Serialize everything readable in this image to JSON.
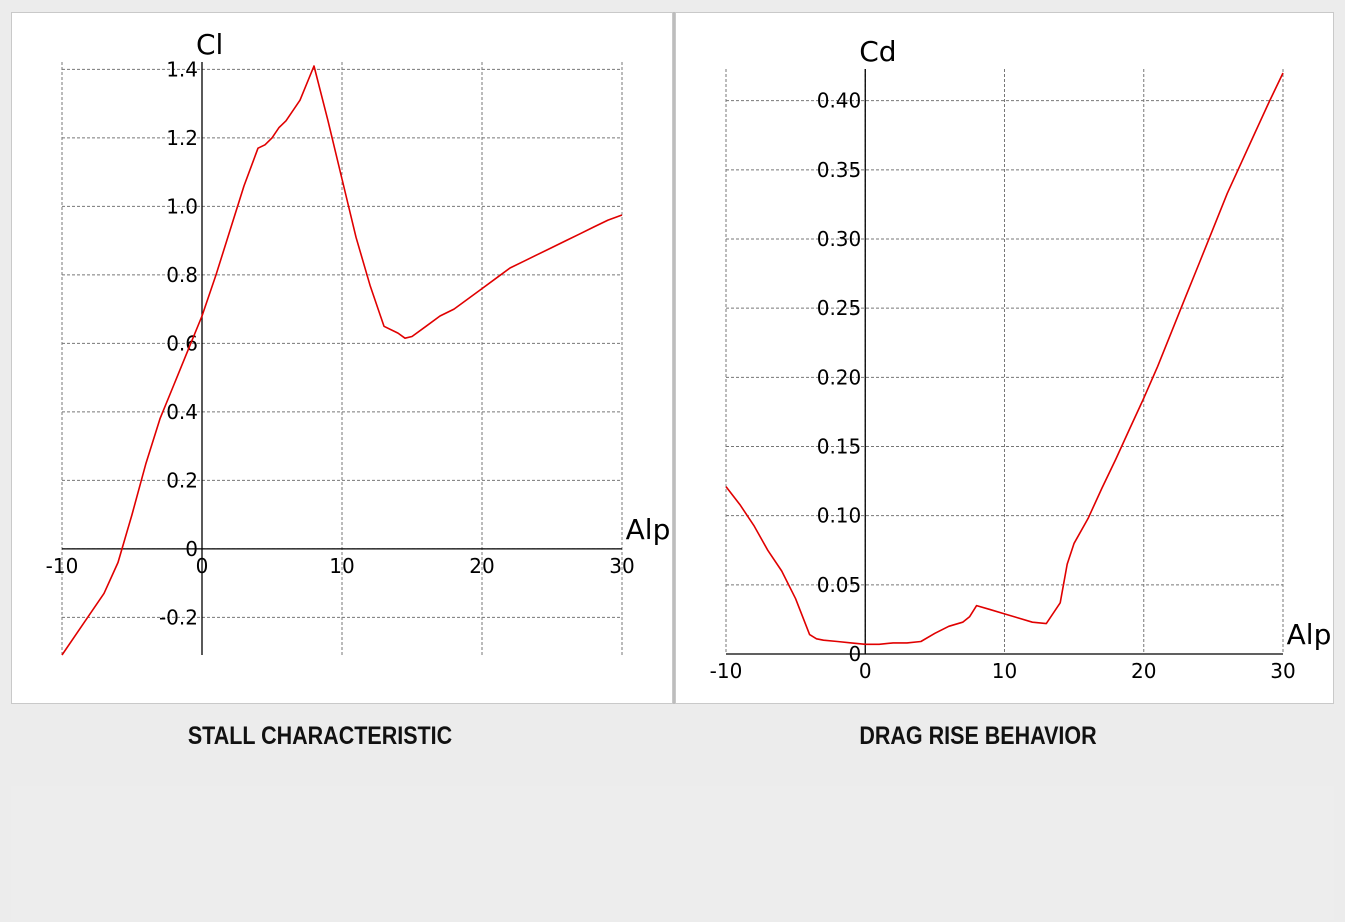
{
  "colors": {
    "curve": "#e00000",
    "grid": "#777777",
    "axis": "#000000",
    "background": "#ececec",
    "panel": "#ffffff"
  },
  "chart_data": [
    {
      "type": "line",
      "caption": "STALL CHARACTERISTIC",
      "xlabel": "Alp",
      "ylabel": "Cl",
      "xlim": [
        -10,
        30
      ],
      "ylim": [
        -0.31,
        1.41
      ],
      "xticks": [
        "-10",
        "0",
        "10",
        "20",
        "30"
      ],
      "yticks": [
        "-0.2",
        "0",
        "0.2",
        "0.4",
        "0.6",
        "0.8",
        "1.0",
        "1.2",
        "1.4"
      ],
      "grid": true,
      "series": [
        {
          "x": [
            -10,
            -8.5,
            -7,
            -6,
            -5,
            -4,
            -3,
            -2,
            -1,
            0,
            1,
            2,
            3,
            4,
            4.5,
            5,
            5.5,
            6,
            7,
            8,
            9,
            10,
            11,
            12,
            13,
            14,
            14.5,
            15,
            16,
            17,
            18,
            19,
            20,
            21,
            22,
            23,
            24,
            25,
            26,
            27,
            28,
            29,
            30
          ],
          "y": [
            -0.31,
            -0.22,
            -0.13,
            -0.04,
            0.1,
            0.25,
            0.38,
            0.48,
            0.58,
            0.68,
            0.8,
            0.93,
            1.06,
            1.17,
            1.18,
            1.2,
            1.23,
            1.25,
            1.31,
            1.41,
            1.25,
            1.08,
            0.91,
            0.77,
            0.65,
            0.63,
            0.615,
            0.62,
            0.65,
            0.68,
            0.7,
            0.73,
            0.76,
            0.79,
            0.82,
            0.84,
            0.86,
            0.88,
            0.9,
            0.92,
            0.94,
            0.96,
            0.975
          ]
        }
      ]
    },
    {
      "type": "line",
      "caption": "DRAG RISE BEHAVIOR",
      "xlabel": "Alp",
      "ylabel": "Cd",
      "xlim": [
        -10,
        30
      ],
      "ylim": [
        0,
        0.42
      ],
      "xticks": [
        "-10",
        "0",
        "10",
        "20",
        "30"
      ],
      "yticks": [
        "0",
        "0.05",
        "0.10",
        "0.15",
        "0.20",
        "0.25",
        "0.30",
        "0.35",
        "0.40"
      ],
      "grid": true,
      "series": [
        {
          "x": [
            -10,
            -9,
            -8,
            -7,
            -6,
            -5,
            -4,
            -3.5,
            -3,
            -2,
            -1,
            0,
            1,
            2,
            3,
            4,
            5,
            6,
            7,
            7.5,
            8,
            9,
            10,
            11,
            12,
            13,
            14,
            14.5,
            15,
            16,
            17,
            18,
            19,
            20,
            21,
            22,
            23,
            24,
            25,
            26,
            27,
            28,
            29,
            30
          ],
          "y": [
            0.121,
            0.108,
            0.093,
            0.075,
            0.06,
            0.04,
            0.014,
            0.011,
            0.01,
            0.009,
            0.008,
            0.007,
            0.007,
            0.008,
            0.008,
            0.009,
            0.015,
            0.02,
            0.023,
            0.027,
            0.035,
            0.032,
            0.029,
            0.026,
            0.023,
            0.022,
            0.037,
            0.065,
            0.08,
            0.098,
            0.12,
            0.141,
            0.163,
            0.185,
            0.208,
            0.233,
            0.258,
            0.283,
            0.308,
            0.333,
            0.355,
            0.377,
            0.399,
            0.42
          ]
        }
      ]
    }
  ]
}
